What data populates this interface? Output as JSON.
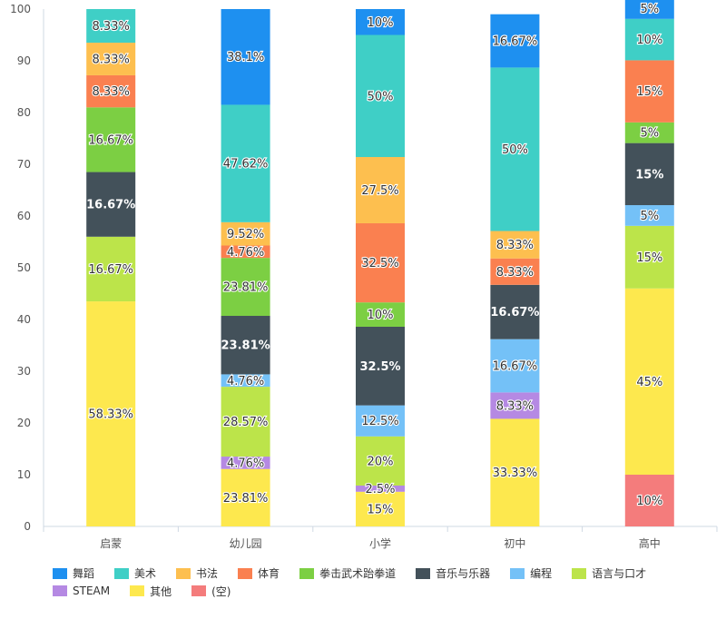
{
  "chart_data": {
    "type": "bar",
    "stacked": true,
    "categories": [
      "启蒙",
      "幼儿园",
      "小学",
      "初中",
      "高中"
    ],
    "ylim": [
      0,
      100
    ],
    "yticks": [
      0,
      10,
      20,
      30,
      40,
      50,
      60,
      70,
      80,
      90,
      100
    ],
    "grid": false,
    "legend_position": "bottom",
    "series": [
      {
        "name": "(空)",
        "color": "#f47c7c",
        "values": [
          0,
          0,
          0,
          0,
          10
        ],
        "labels": [
          "",
          "",
          "",
          "",
          "10%"
        ]
      },
      {
        "name": "其他",
        "color": "#fde84e",
        "values": [
          43.5,
          11.1,
          6.7,
          20.8,
          36
        ],
        "labels": [
          "58.33%",
          "23.81%",
          "15%",
          "33.33%",
          "45%"
        ]
      },
      {
        "name": "STEAM",
        "color": "#b589e3",
        "values": [
          0,
          2.4,
          1.2,
          5.1,
          0
        ],
        "labels": [
          "",
          "4.76%",
          "2.5%",
          "8.33%",
          ""
        ]
      },
      {
        "name": "语言与口才",
        "color": "#bce44a",
        "values": [
          12.5,
          13.5,
          9.5,
          0,
          12.1
        ],
        "labels": [
          "16.67%",
          "28.57%",
          "20%",
          "",
          "15%"
        ]
      },
      {
        "name": "编程",
        "color": "#74c1f7",
        "values": [
          0,
          2.4,
          6,
          10.3,
          4
        ],
        "labels": [
          "",
          "4.76%",
          "12.5%",
          "16.67%",
          "5%"
        ]
      },
      {
        "name": "音乐与乐器",
        "color": "#43515a",
        "values": [
          12.5,
          11.3,
          15.2,
          10.5,
          12
        ],
        "labels": [
          "16.67%",
          "23.81%",
          "32.5%",
          "16.67%",
          "15%"
        ]
      },
      {
        "name": "拳击武术跆拳道",
        "color": "#7ccf43",
        "values": [
          12.5,
          11.2,
          4.7,
          0,
          4
        ],
        "labels": [
          "16.67%",
          "23.81%",
          "10%",
          "",
          "5%"
        ]
      },
      {
        "name": "体育",
        "color": "#fa8050",
        "values": [
          6.2,
          2.4,
          15.3,
          5.1,
          12
        ],
        "labels": [
          "8.33%",
          "4.76%",
          "32.5%",
          "8.33%",
          "15%"
        ]
      },
      {
        "name": "书法",
        "color": "#fdbf4f",
        "values": [
          6.3,
          4.5,
          12.8,
          5.3,
          0
        ],
        "labels": [
          "8.33%",
          "9.52%",
          "27.5%",
          "8.33%",
          ""
        ]
      },
      {
        "name": "美术",
        "color": "#3fcfc6",
        "values": [
          6.5,
          22.7,
          23.6,
          31.6,
          8
        ],
        "labels": [
          "8.33%",
          "47.62%",
          "50%",
          "50%",
          "10%"
        ]
      },
      {
        "name": "舞蹈",
        "color": "#1e90f0",
        "values": [
          0,
          18.5,
          5,
          10.3,
          4
        ],
        "labels": [
          "",
          "38.1%",
          "10%",
          "16.67%",
          "5%"
        ]
      }
    ],
    "legend_order": [
      "舞蹈",
      "美术",
      "书法",
      "体育",
      "拳击武术跆拳道",
      "音乐与乐器",
      "编程",
      "语言与口才",
      "STEAM",
      "其他",
      "(空)"
    ]
  }
}
